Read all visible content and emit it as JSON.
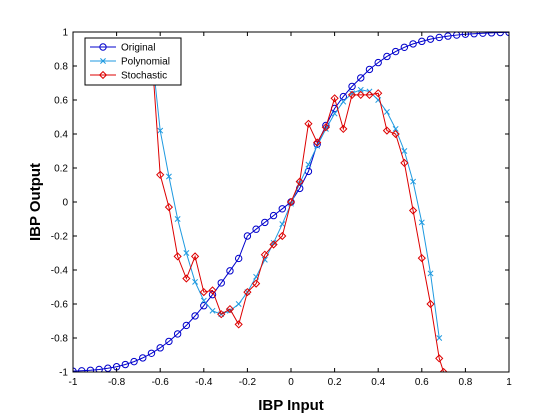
{
  "chart_data": {
    "type": "line",
    "xlabel": "IBP Input",
    "ylabel": "IBP Output",
    "xlim": [
      -1,
      1
    ],
    "ylim": [
      -1,
      1
    ],
    "xticks": [
      "-1",
      "-0.8",
      "-0.6",
      "-0.4",
      "-0.2",
      "0",
      "0.2",
      "0.4",
      "0.6",
      "0.8",
      "1"
    ],
    "yticks": [
      "-1",
      "-0.8",
      "-0.6",
      "-0.4",
      "-0.2",
      "0",
      "0.2",
      "0.4",
      "0.6",
      "0.8",
      "1"
    ],
    "legend_position": "top-left",
    "grid": false,
    "series": [
      {
        "name": "Original",
        "color": "#0000cc",
        "marker": "circle",
        "x": [
          -1.0,
          -0.96,
          -0.92,
          -0.88,
          -0.84,
          -0.8,
          -0.76,
          -0.72,
          -0.68,
          -0.64,
          -0.6,
          -0.56,
          -0.52,
          -0.48,
          -0.44,
          -0.4,
          -0.36,
          -0.32,
          -0.28,
          -0.24,
          -0.2,
          -0.16,
          -0.12,
          -0.08,
          -0.04,
          0.0,
          0.04,
          0.08,
          0.12,
          0.16,
          0.2,
          0.24,
          0.28,
          0.32,
          0.36,
          0.4,
          0.44,
          0.48,
          0.52,
          0.56,
          0.6,
          0.64,
          0.68,
          0.72,
          0.76,
          0.8,
          0.84,
          0.88,
          0.92,
          0.96,
          1.0
        ],
        "y": [
          -0.995,
          -0.993,
          -0.99,
          -0.985,
          -0.978,
          -0.969,
          -0.956,
          -0.939,
          -0.917,
          -0.89,
          -0.858,
          -0.82,
          -0.776,
          -0.726,
          -0.67,
          -0.61,
          -0.545,
          -0.476,
          -0.405,
          -0.332,
          -0.2,
          -0.16,
          -0.12,
          -0.08,
          -0.04,
          0.0,
          0.08,
          0.18,
          0.34,
          0.45,
          0.55,
          0.62,
          0.68,
          0.73,
          0.78,
          0.82,
          0.856,
          0.885,
          0.91,
          0.93,
          0.945,
          0.958,
          0.968,
          0.976,
          0.982,
          0.987,
          0.99,
          0.993,
          0.995,
          0.997,
          0.998
        ]
      },
      {
        "name": "Polynomial",
        "color": "#1f9ae0",
        "marker": "x",
        "x": [
          -0.64,
          -0.6,
          -0.56,
          -0.52,
          -0.48,
          -0.44,
          -0.4,
          -0.36,
          -0.32,
          -0.28,
          -0.24,
          -0.2,
          -0.16,
          -0.12,
          -0.08,
          -0.04,
          0.0,
          0.04,
          0.08,
          0.12,
          0.16,
          0.2,
          0.24,
          0.28,
          0.32,
          0.36,
          0.4,
          0.44,
          0.48,
          0.52,
          0.56,
          0.6,
          0.64,
          0.68
        ],
        "y": [
          0.9,
          0.42,
          0.15,
          -0.1,
          -0.3,
          -0.47,
          -0.58,
          -0.64,
          -0.66,
          -0.64,
          -0.6,
          -0.53,
          -0.44,
          -0.34,
          -0.24,
          -0.13,
          -0.01,
          0.11,
          0.22,
          0.33,
          0.43,
          0.52,
          0.59,
          0.64,
          0.66,
          0.65,
          0.6,
          0.53,
          0.43,
          0.3,
          0.12,
          -0.12,
          -0.42,
          -0.8
        ]
      },
      {
        "name": "Stochastic",
        "color": "#dd0000",
        "marker": "diamond",
        "x": [
          -0.64,
          -0.6,
          -0.56,
          -0.52,
          -0.48,
          -0.44,
          -0.4,
          -0.36,
          -0.32,
          -0.28,
          -0.24,
          -0.2,
          -0.16,
          -0.12,
          -0.08,
          -0.04,
          0.0,
          0.04,
          0.08,
          0.12,
          0.16,
          0.2,
          0.24,
          0.28,
          0.32,
          0.36,
          0.4,
          0.44,
          0.48,
          0.52,
          0.56,
          0.6,
          0.64,
          0.68,
          0.7
        ],
        "y": [
          0.9,
          0.16,
          -0.03,
          -0.32,
          -0.45,
          -0.32,
          -0.53,
          -0.52,
          -0.66,
          -0.63,
          -0.72,
          -0.53,
          -0.48,
          -0.31,
          -0.25,
          -0.2,
          0.0,
          0.12,
          0.46,
          0.35,
          0.44,
          0.61,
          0.43,
          0.63,
          0.63,
          0.63,
          0.64,
          0.42,
          0.4,
          0.23,
          -0.05,
          -0.33,
          -0.6,
          -0.92,
          -1.0
        ]
      }
    ]
  }
}
